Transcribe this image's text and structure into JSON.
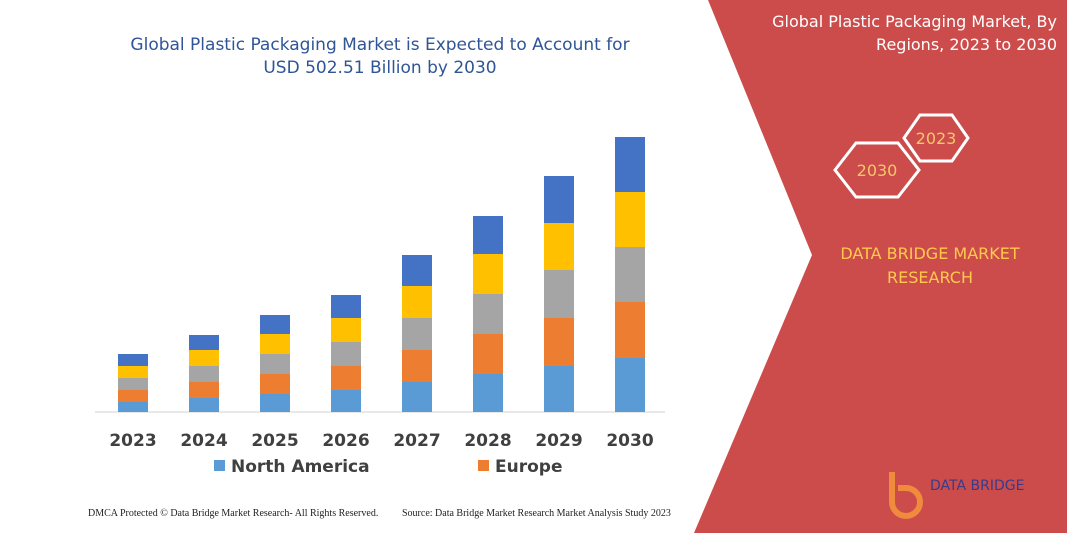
{
  "chart_data": {
    "type": "stacked-bar",
    "title": "Global Plastic Packaging Market is Expected to Account for USD 502.51 Billion by 2030",
    "categories": [
      "2023",
      "2024",
      "2025",
      "2026",
      "2027",
      "2028",
      "2029",
      "2030"
    ],
    "series": [
      {
        "name": "North America",
        "color": "#5b9bd5",
        "values": [
          10,
          14,
          18,
          22,
          30,
          38,
          46,
          54
        ]
      },
      {
        "name": "Europe",
        "color": "#ed7d31",
        "values": [
          12,
          16,
          20,
          24,
          32,
          40,
          48,
          56
        ]
      },
      {
        "color": "#a5a5a5",
        "values": [
          12,
          16,
          20,
          24,
          32,
          40,
          48,
          55
        ]
      },
      {
        "color": "#ffc000",
        "values": [
          12,
          16,
          20,
          24,
          32,
          40,
          47,
          55
        ]
      },
      {
        "color": "#4472c4",
        "values": [
          12,
          15,
          19,
          23,
          31,
          38,
          47,
          55
        ]
      }
    ]
  },
  "panel": {
    "title": "Global Plastic Packaging Market, By Regions, 2023 to 2030",
    "hex_small": "2023",
    "hex_large": "2030",
    "brand": "DATA BRIDGE MARKET RESEARCH",
    "logo": "DATA BRIDGE"
  },
  "footer": {
    "left": "DMCA Protected © Data Bridge Market Research-  All Rights Reserved.",
    "right": "Source: Data Bridge Market Research  Market Analysis Study 2023"
  }
}
